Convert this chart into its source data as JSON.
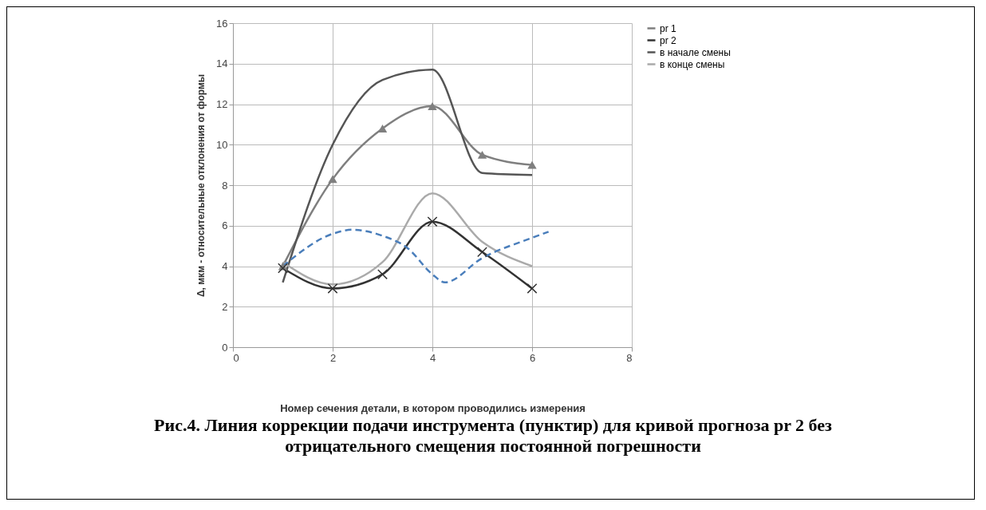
{
  "chart_data": {
    "type": "line",
    "title": "Рис.4. Линия коррекции подачи инструмента (пунктир) для кривой прогноза pr 2 без отрицательного смещения постоянной погрешности",
    "xlabel": "Номер сечения детали, в котором проводились измерения",
    "ylabel": "Δ, мкм - относительные отклонения от формы",
    "x": [
      1,
      2,
      3,
      4,
      5,
      6
    ],
    "series": [
      {
        "name": "pr 1",
        "color": "#7f7f7f",
        "marker": "triangle",
        "values": [
          4,
          8.3,
          10.8,
          11.9,
          9.5,
          9.0
        ]
      },
      {
        "name": "pr 2",
        "color": "#333333",
        "marker": "cross",
        "values": [
          3.9,
          2.9,
          3.6,
          6.2,
          4.7,
          2.9
        ]
      },
      {
        "name": "в начале смены",
        "color": "#555555",
        "values": [
          3.2,
          10,
          13.2,
          13.7,
          8.6,
          8.5
        ]
      },
      {
        "name": "в конце смены",
        "color": "#aaaaaa",
        "values": [
          4.2,
          3.1,
          4.2,
          7.6,
          5.2,
          4.0
        ]
      },
      {
        "color": "#4a7ebb",
        "line_style": "dashed",
        "x": [
          1,
          2,
          2.4,
          3,
          3.5,
          4,
          4.25,
          5,
          6,
          6.33
        ],
        "values": [
          4.0,
          5.6,
          5.8,
          5.5,
          4.9,
          3.6,
          3.2,
          4.4,
          5.4,
          5.7
        ]
      }
    ],
    "xlim": [
      0,
      8
    ],
    "xticks": [
      0,
      2,
      4,
      6,
      8
    ],
    "ylim": [
      0,
      16
    ],
    "yticks": [
      0,
      2,
      4,
      6,
      8,
      10,
      12,
      14,
      16
    ],
    "grid": true,
    "legend": "right"
  }
}
